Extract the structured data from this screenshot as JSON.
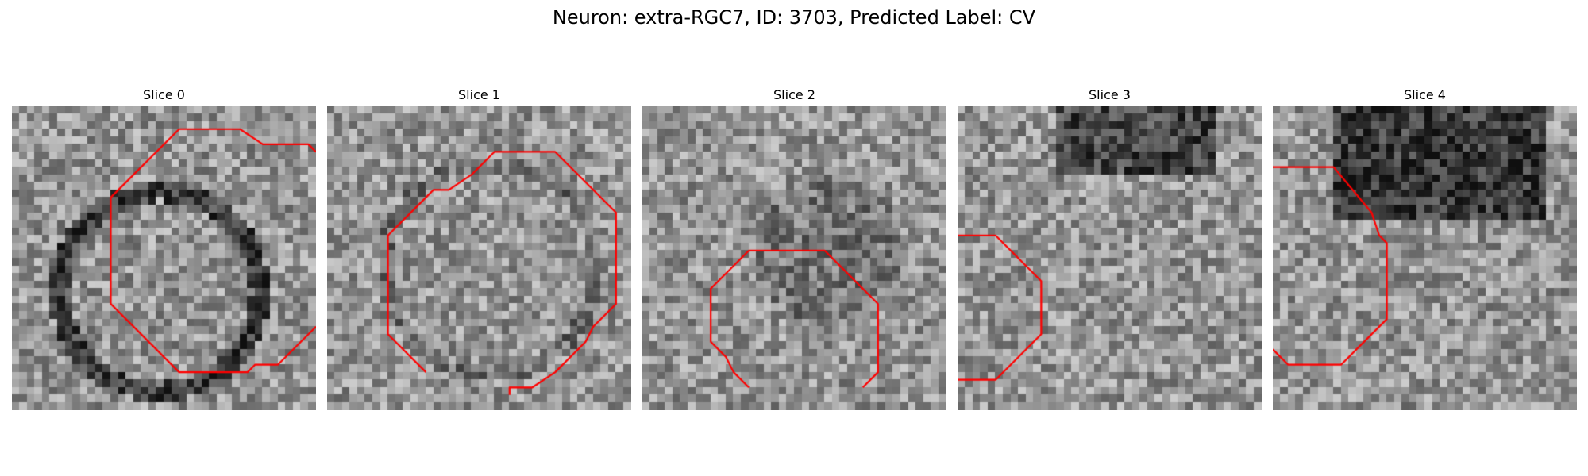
{
  "figure": {
    "title": "Neuron: extra-RGC7, ID: 3703, Predicted Label: CV"
  },
  "panels": [
    {
      "title": "Slice 0",
      "contour": [
        [
          22,
          3
        ],
        [
          30,
          3
        ],
        [
          33,
          5
        ],
        [
          39,
          5
        ],
        [
          40,
          6
        ]
      ],
      "contour2": [
        [
          13,
          12
        ],
        [
          22,
          3
        ]
      ],
      "contour3": [
        [
          13,
          12
        ],
        [
          13,
          26
        ],
        [
          22,
          35
        ],
        [
          31,
          35
        ],
        [
          32,
          34
        ],
        [
          35,
          34
        ],
        [
          40,
          29
        ]
      ]
    },
    {
      "title": "Slice 1",
      "contour": [
        [
          13,
          35
        ],
        [
          8,
          30
        ],
        [
          8,
          17
        ],
        [
          13,
          12
        ],
        [
          14,
          11
        ],
        [
          16,
          11
        ],
        [
          19,
          9
        ],
        [
          22,
          6
        ],
        [
          30,
          6
        ],
        [
          38,
          14
        ],
        [
          38,
          26
        ],
        [
          35,
          29
        ],
        [
          34,
          31
        ],
        [
          30,
          35
        ],
        [
          27,
          37
        ],
        [
          24,
          37
        ],
        [
          24,
          38
        ]
      ]
    },
    {
      "title": "Slice 2",
      "contour": [
        [
          14,
          37
        ],
        [
          12,
          35
        ],
        [
          11,
          33
        ],
        [
          9,
          31
        ],
        [
          9,
          24
        ],
        [
          14,
          19
        ],
        [
          24,
          19
        ],
        [
          31,
          26
        ],
        [
          31,
          35
        ],
        [
          29,
          37
        ]
      ]
    },
    {
      "title": "Slice 3",
      "contour": [
        [
          0,
          17
        ],
        [
          5,
          17
        ],
        [
          11,
          23
        ],
        [
          11,
          30
        ],
        [
          5,
          36
        ],
        [
          0,
          36
        ]
      ]
    },
    {
      "title": "Slice 4",
      "contour": [
        [
          0,
          8
        ],
        [
          8,
          8
        ],
        [
          13,
          14
        ],
        [
          14,
          17
        ],
        [
          15,
          18
        ],
        [
          15,
          28
        ],
        [
          9,
          34
        ],
        [
          2,
          34
        ],
        [
          0,
          32
        ]
      ]
    }
  ]
}
